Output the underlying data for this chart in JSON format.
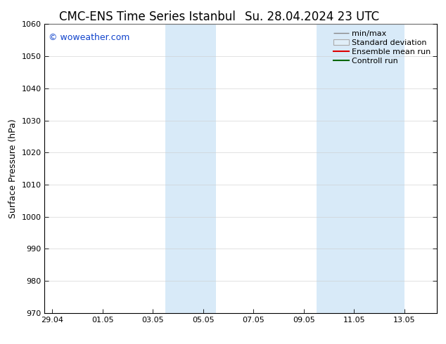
{
  "title_left": "CMC-ENS Time Series Istanbul",
  "title_right": "Su. 28.04.2024 23 UTC",
  "ylabel": "Surface Pressure (hPa)",
  "ylim": [
    970,
    1060
  ],
  "yticks": [
    970,
    980,
    990,
    1000,
    1010,
    1020,
    1030,
    1040,
    1050,
    1060
  ],
  "xlabels": [
    "29.04",
    "01.05",
    "03.05",
    "05.05",
    "07.05",
    "09.05",
    "11.05",
    "13.05"
  ],
  "xtick_positions": [
    0,
    2,
    4,
    6,
    8,
    10,
    12,
    14
  ],
  "xmin": -0.3,
  "xmax": 15.3,
  "shaded_bands": [
    {
      "xmin": 4.5,
      "xmax": 6.5
    },
    {
      "xmin": 10.5,
      "xmax": 14.0
    }
  ],
  "shade_color": "#d8eaf8",
  "background_color": "#ffffff",
  "plot_bg_color": "#ffffff",
  "grid_color": "#cccccc",
  "copyright_text": "© woweather.com",
  "copyright_color": "#1144cc",
  "legend_items": [
    {
      "label": "min/max",
      "color": "#888888",
      "type": "minmax"
    },
    {
      "label": "Standard deviation",
      "color": "#aaaaaa",
      "type": "stddev"
    },
    {
      "label": "Ensemble mean run",
      "color": "#dd0000",
      "type": "line"
    },
    {
      "label": "Controll run",
      "color": "#006600",
      "type": "line"
    }
  ],
  "title_fontsize": 12,
  "axis_fontsize": 9,
  "tick_fontsize": 8,
  "legend_fontsize": 8
}
